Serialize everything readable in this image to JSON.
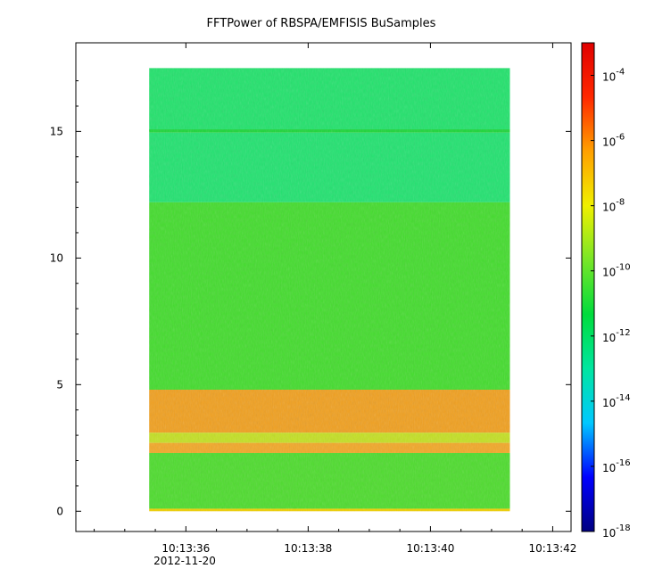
{
  "chart_data": {
    "type": "heatmap",
    "title": "FFTPower of RBSPA/EMFISIS  BuSamples",
    "xlabel": "",
    "ylabel": "",
    "x_axis": {
      "range": [
        "10:13:34.2",
        "10:13:42.3"
      ],
      "ticks": [
        "10:13:36",
        "10:13:38",
        "10:13:40",
        "10:13:42"
      ],
      "date_label": "2012-11-20"
    },
    "y_axis": {
      "range": [
        -0.8,
        18.5
      ],
      "ticks": [
        "0",
        "5",
        "10",
        "15"
      ]
    },
    "data_extent": {
      "x": [
        "10:13:35.4",
        "10:13:41.3"
      ],
      "y": [
        0,
        17.5
      ]
    },
    "colorbar": {
      "scale": "log",
      "range": [
        1e-18,
        0.001
      ],
      "tick_values": [
        0.0001,
        1e-06,
        1e-08,
        1e-10,
        1e-12,
        1e-14,
        1e-16,
        1e-18
      ],
      "tick_bases": [
        "10",
        "10",
        "10",
        "10",
        "10",
        "10",
        "10",
        "10"
      ],
      "tick_exponents": [
        "-4",
        "-6",
        "-8",
        "-10",
        "-12",
        "-14",
        "-16",
        "-18"
      ],
      "colormap": [
        "#000080",
        "#0000ff",
        "#00c8ff",
        "#00e6a0",
        "#00dc3c",
        "#78e628",
        "#f0f000",
        "#ffa000",
        "#ff2800",
        "#e00000"
      ]
    },
    "bands": [
      {
        "y_range": [
          15.0,
          17.5
        ],
        "log_power": -11.6,
        "color": "#22e26c"
      },
      {
        "y_range": [
          14.95,
          15.08
        ],
        "log_power": -10.6,
        "color": "#1cd638"
      },
      {
        "y_range": [
          12.2,
          14.95
        ],
        "log_power": -11.7,
        "color": "#22e270"
      },
      {
        "y_range": [
          4.8,
          12.2
        ],
        "log_power": -10.4,
        "color": "#44dc2e"
      },
      {
        "y_range": [
          3.1,
          4.8
        ],
        "log_power": -6.5,
        "GA": true,
        "color": "#f0a020"
      },
      {
        "y_range": [
          2.7,
          3.1
        ],
        "log_power": -8.5,
        "color": "#c4e024"
      },
      {
        "y_range": [
          2.3,
          2.7
        ],
        "log_power": -6.8,
        "color": "#f2a828"
      },
      {
        "y_range": [
          0.1,
          2.3
        ],
        "log_power": -10.2,
        "color": "#4edc2e"
      },
      {
        "y_range": [
          0.0,
          0.1
        ],
        "log_power": -7.5,
        "color": "#f0d000"
      }
    ]
  }
}
